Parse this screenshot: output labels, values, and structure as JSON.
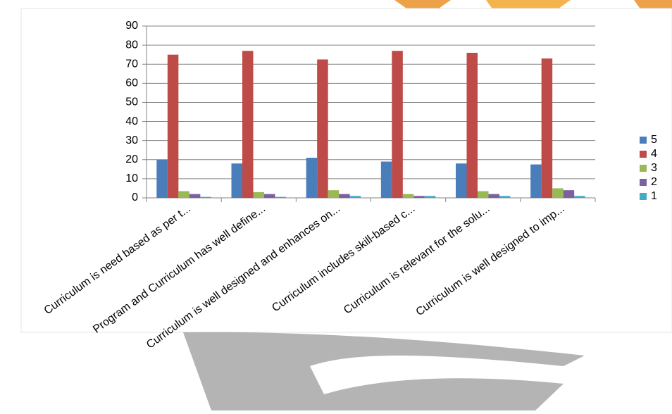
{
  "chart_data": {
    "type": "bar",
    "categories": [
      "Curriculum is need based as per t...",
      "Program and Curriculum has well define...",
      "Curriculum is well designed and enhances on...",
      "Curriculum includes skill-based c...",
      "Curriculum is relevant for the solu...",
      "Curriculum is well designed to imp..."
    ],
    "series": [
      {
        "name": "5",
        "color": "#4a7ebb",
        "values": [
          20,
          18,
          21,
          19,
          18,
          17.5
        ]
      },
      {
        "name": "4",
        "color": "#be4b48",
        "values": [
          75,
          77,
          72.5,
          77,
          76,
          73
        ]
      },
      {
        "name": "3",
        "color": "#98b954",
        "values": [
          3.5,
          3,
          4,
          2,
          3.5,
          5
        ]
      },
      {
        "name": "2",
        "color": "#7d60a0",
        "values": [
          2,
          2,
          2,
          1,
          2,
          4
        ]
      },
      {
        "name": "1",
        "color": "#46aac5",
        "values": [
          0.5,
          0.5,
          1,
          1,
          1,
          1
        ]
      }
    ],
    "ylim": [
      0,
      90
    ],
    "yticks": [
      0,
      10,
      20,
      30,
      40,
      50,
      60,
      70,
      80,
      90
    ],
    "grid": true,
    "legend": "right"
  }
}
